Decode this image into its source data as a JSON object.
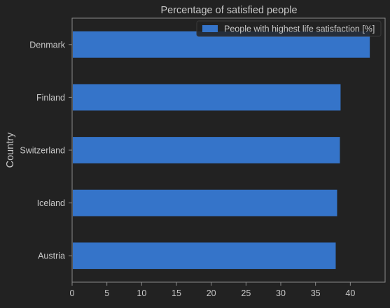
{
  "chart_data": {
    "type": "bar",
    "orientation": "horizontal",
    "title": "Percentage of satisfied people",
    "xlabel": "",
    "ylabel": "Country",
    "categories": [
      "Denmark",
      "Finland",
      "Switzerland",
      "Iceland",
      "Austria"
    ],
    "series": [
      {
        "name": "People with highest life satisfaction [%]",
        "values": [
          42.8,
          38.6,
          38.5,
          38.1,
          37.9
        ]
      }
    ],
    "xlim": [
      0,
      45
    ],
    "xticks": [
      0,
      5,
      10,
      15,
      20,
      25,
      30,
      35,
      40
    ],
    "grid": false,
    "legend_position": "top-right",
    "colors": {
      "background": "#222222",
      "bar": "#3574c9",
      "text": "#c8c8c8",
      "axis": "#8a8a8a"
    }
  }
}
